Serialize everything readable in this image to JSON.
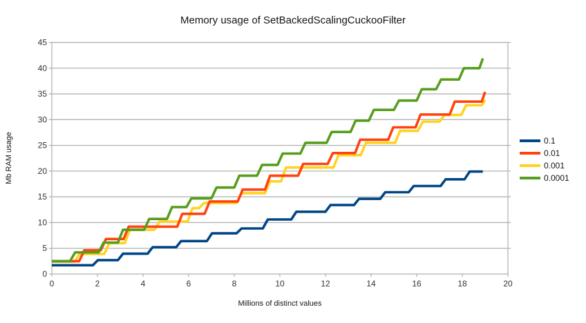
{
  "chart_data": {
    "type": "line",
    "subtype": "step",
    "title": "Memory usage of SetBackedScalingCuckooFilter",
    "xlabel": "Millions of distinct values",
    "ylabel": "Mb RAM usage",
    "xlim": [
      0,
      20
    ],
    "ylim": [
      0,
      45
    ],
    "x_ticks": [
      0,
      2,
      4,
      6,
      8,
      10,
      12,
      14,
      16,
      18,
      20
    ],
    "y_ticks": [
      0,
      5,
      10,
      15,
      20,
      25,
      30,
      35,
      40,
      45
    ],
    "grid": "horizontal",
    "legend_position": "right",
    "colors": {
      "grid": "#b3b3b3",
      "frame": "#b3b3b3",
      "tick_text": "#333333",
      "background": "#ffffff"
    },
    "series": [
      {
        "name": "0.1",
        "color": "#004586",
        "zorder": 1,
        "end_x": 18.9,
        "steps": [
          [
            0,
            1.7
          ],
          [
            1.8,
            2.7
          ],
          [
            2.9,
            3.95
          ],
          [
            4.2,
            5.2
          ],
          [
            5.45,
            6.4
          ],
          [
            6.8,
            7.9
          ],
          [
            8.1,
            8.85
          ],
          [
            9.25,
            10.6
          ],
          [
            10.5,
            12.1
          ],
          [
            12.0,
            13.4
          ],
          [
            13.25,
            14.6
          ],
          [
            14.4,
            15.9
          ],
          [
            15.65,
            17.1
          ],
          [
            17.05,
            18.4
          ],
          [
            18.1,
            19.9
          ]
        ]
      },
      {
        "name": "0.01",
        "color": "#ff420e",
        "zorder": 3,
        "end_x": 19.0,
        "steps": [
          [
            0,
            2.5
          ],
          [
            1.2,
            4.6
          ],
          [
            2.15,
            6.8
          ],
          [
            3.15,
            9.2
          ],
          [
            5.5,
            11.7
          ],
          [
            6.7,
            14.1
          ],
          [
            8.15,
            16.4
          ],
          [
            9.35,
            19.1
          ],
          [
            10.8,
            21.4
          ],
          [
            12.1,
            23.5
          ],
          [
            13.3,
            26.1
          ],
          [
            14.75,
            28.5
          ],
          [
            15.95,
            31.0
          ],
          [
            17.45,
            33.5
          ],
          [
            18.85,
            35.4
          ]
        ]
      },
      {
        "name": "0.001",
        "color": "#ffd320",
        "zorder": 2,
        "end_x": 19.0,
        "steps": [
          [
            0,
            2.4
          ],
          [
            1.0,
            3.9
          ],
          [
            2.3,
            6.0
          ],
          [
            3.2,
            8.6
          ],
          [
            4.5,
            10.2
          ],
          [
            5.95,
            12.8
          ],
          [
            6.45,
            13.8
          ],
          [
            8.1,
            15.7
          ],
          [
            9.35,
            18.0
          ],
          [
            10.05,
            20.7
          ],
          [
            12.35,
            23.1
          ],
          [
            13.55,
            25.5
          ],
          [
            15.05,
            27.8
          ],
          [
            16.05,
            29.6
          ],
          [
            17.0,
            30.9
          ],
          [
            17.95,
            32.8
          ],
          [
            18.85,
            33.8
          ]
        ]
      },
      {
        "name": "0.0001",
        "color": "#579d1c",
        "zorder": 4,
        "end_x": 18.9,
        "steps": [
          [
            0,
            2.5
          ],
          [
            0.8,
            4.2
          ],
          [
            2.05,
            6.1
          ],
          [
            2.9,
            8.6
          ],
          [
            4.05,
            10.7
          ],
          [
            5.05,
            13.0
          ],
          [
            5.9,
            14.7
          ],
          [
            7.0,
            16.8
          ],
          [
            8.0,
            19.1
          ],
          [
            9.0,
            21.2
          ],
          [
            9.9,
            23.4
          ],
          [
            10.9,
            25.5
          ],
          [
            12.05,
            27.6
          ],
          [
            13.1,
            29.8
          ],
          [
            13.9,
            31.9
          ],
          [
            15.0,
            33.7
          ],
          [
            16.0,
            35.9
          ],
          [
            16.85,
            37.8
          ],
          [
            17.85,
            40.0
          ],
          [
            18.75,
            41.9
          ]
        ]
      }
    ]
  }
}
